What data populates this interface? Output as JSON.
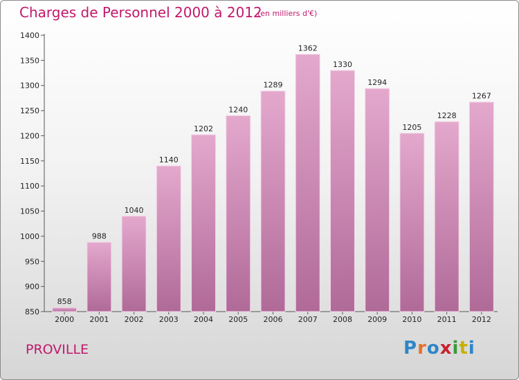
{
  "header": {
    "title": "Charges de Personnel 2000 à 2012",
    "unit": "(en milliers d'€)"
  },
  "footer": {
    "commune": "PROVILLE",
    "logo_text": "Proxiti",
    "logo_colors": [
      "#2f86c8",
      "#e8702a",
      "#2f86c8",
      "#c8202f",
      "#3a9a3a",
      "#c8b000",
      "#2f86c8"
    ]
  },
  "colors": {
    "title": "#c2186b",
    "bar_top": "#e4a8cd",
    "bar_bottom": "#b06a98"
  },
  "chart_data": {
    "type": "bar",
    "title": "Charges de Personnel 2000 à 2012",
    "subtitle": "(en milliers d'€)",
    "categories": [
      "2000",
      "2001",
      "2002",
      "2003",
      "2004",
      "2005",
      "2006",
      "2007",
      "2008",
      "2009",
      "2010",
      "2011",
      "2012"
    ],
    "values": [
      858,
      988,
      1040,
      1140,
      1202,
      1240,
      1289,
      1362,
      1330,
      1294,
      1205,
      1228,
      1267
    ],
    "ylim": [
      850,
      1400
    ],
    "yticks": [
      850,
      900,
      950,
      1000,
      1050,
      1100,
      1150,
      1200,
      1250,
      1300,
      1350,
      1400
    ],
    "grid": false,
    "xlabel": "",
    "ylabel": ""
  }
}
